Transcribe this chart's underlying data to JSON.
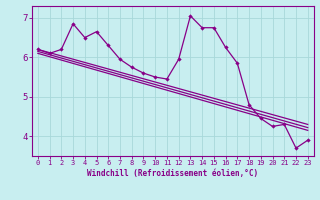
{
  "xlabel": "Windchill (Refroidissement éolien,°C)",
  "bg_color": "#c8eef0",
  "grid_color": "#a8d8da",
  "line_color": "#880088",
  "x_ticks": [
    0,
    1,
    2,
    3,
    4,
    5,
    6,
    7,
    8,
    9,
    10,
    11,
    12,
    13,
    14,
    15,
    16,
    17,
    18,
    19,
    20,
    21,
    22,
    23
  ],
  "yticks": [
    4,
    5,
    6,
    7
  ],
  "ylim": [
    3.5,
    7.3
  ],
  "xlim": [
    -0.5,
    23.5
  ],
  "line_with_markers": {
    "x": [
      0,
      1,
      2,
      3,
      4,
      5,
      6,
      7,
      8,
      9,
      10,
      11,
      12,
      13,
      14,
      15,
      16,
      17,
      18,
      19,
      20,
      21,
      22,
      23
    ],
    "y": [
      6.2,
      6.1,
      6.2,
      6.85,
      6.5,
      6.65,
      6.3,
      5.95,
      5.75,
      5.6,
      5.5,
      5.45,
      5.95,
      7.05,
      6.75,
      6.75,
      6.25,
      5.85,
      4.8,
      4.45,
      4.25,
      4.3,
      3.7,
      3.9
    ]
  },
  "smooth_lines": [
    {
      "x": [
        0,
        23
      ],
      "y": [
        6.2,
        4.3
      ]
    },
    {
      "x": [
        0,
        23
      ],
      "y": [
        6.15,
        4.22
      ]
    },
    {
      "x": [
        0,
        23
      ],
      "y": [
        6.1,
        4.15
      ]
    }
  ]
}
